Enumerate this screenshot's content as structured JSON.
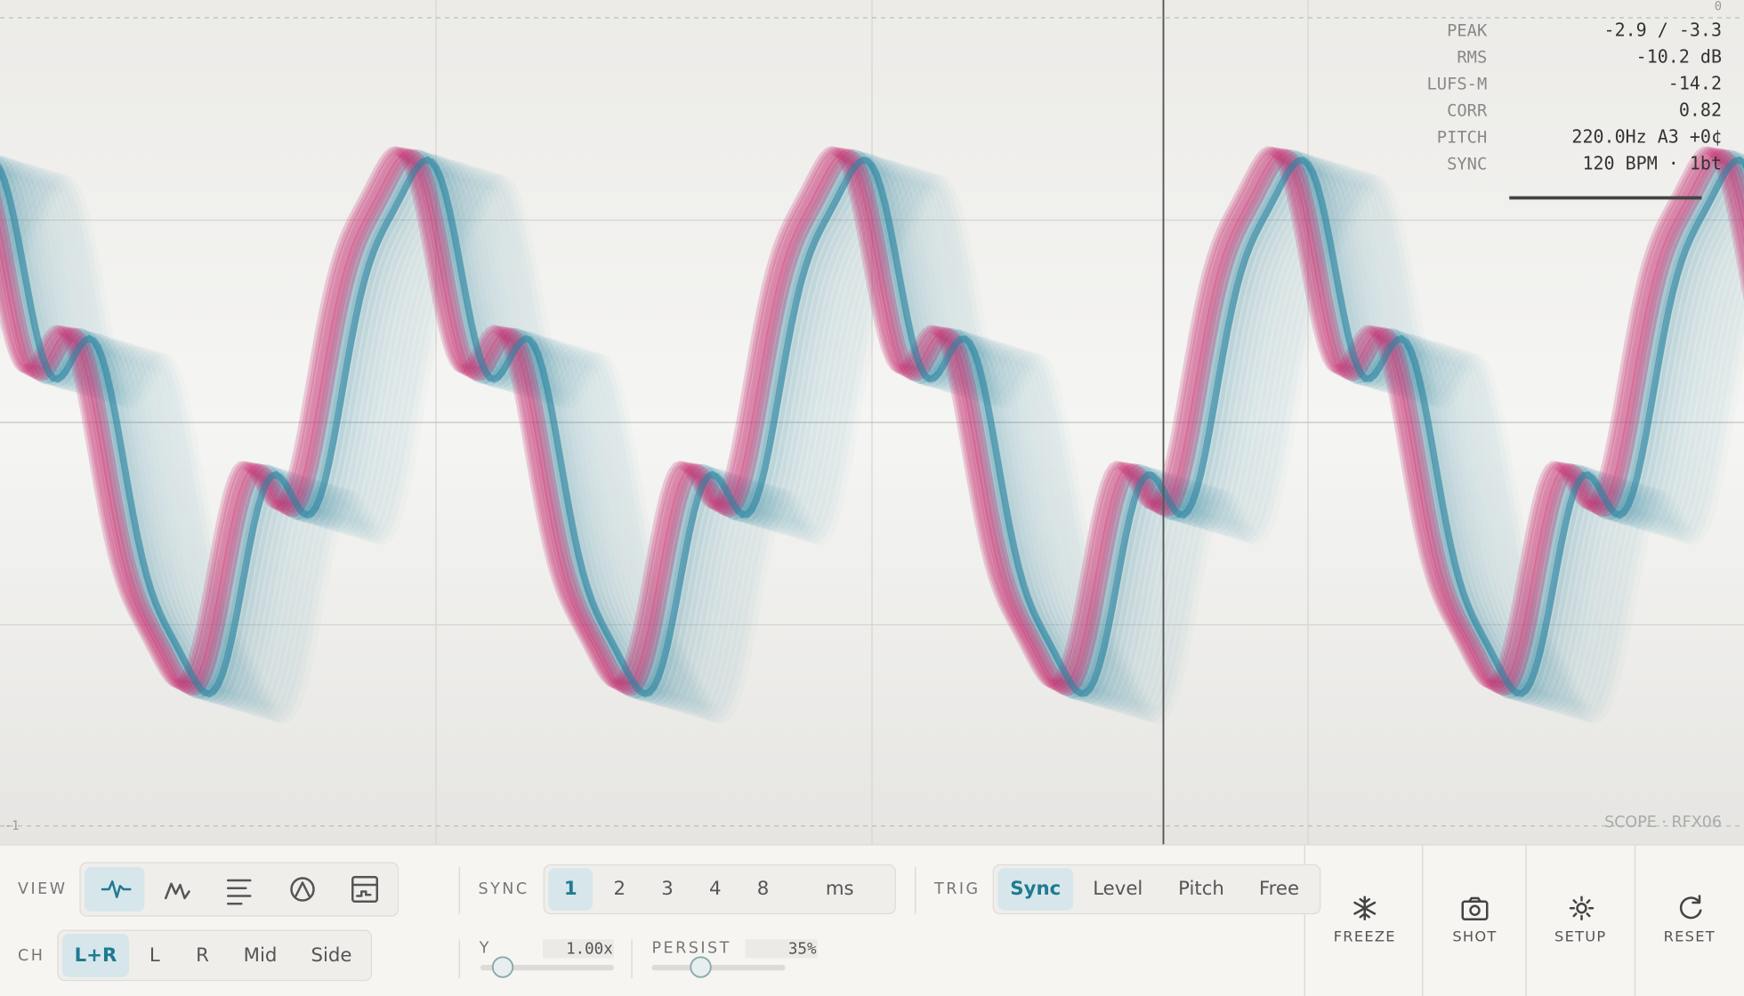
{
  "scope": {
    "scale_top": "0",
    "scale_bottom": "-1",
    "watermark": "SCOPE · RFX06",
    "readouts": [
      {
        "label": "PEAK",
        "value": "-2.9 / -3.3"
      },
      {
        "label": "RMS",
        "value": "-10.2 dB"
      },
      {
        "label": "LUFS-M",
        "value": "-14.2"
      },
      {
        "label": "CORR",
        "value": "0.82"
      },
      {
        "label": "PITCH",
        "value": "220.0Hz A3 +0¢"
      },
      {
        "label": "SYNC",
        "value": "120 BPM · 1bt"
      }
    ]
  },
  "toolbar": {
    "view_label": "VIEW",
    "ch_label": "CH",
    "channels": [
      "L+R",
      "L",
      "R",
      "Mid",
      "Side"
    ],
    "sync_label": "SYNC",
    "sync_options": [
      "1",
      "2",
      "3",
      "4",
      "8",
      "ms"
    ],
    "trig_label": "TRIG",
    "trig_options": [
      "Sync",
      "Level",
      "Pitch",
      "Free"
    ],
    "y_label": "Y",
    "y_value": "1.00x",
    "persist_label": "PERSIST",
    "persist_value": "35%",
    "actions": [
      "FREEZE",
      "SHOT",
      "SETUP",
      "RESET"
    ]
  }
}
